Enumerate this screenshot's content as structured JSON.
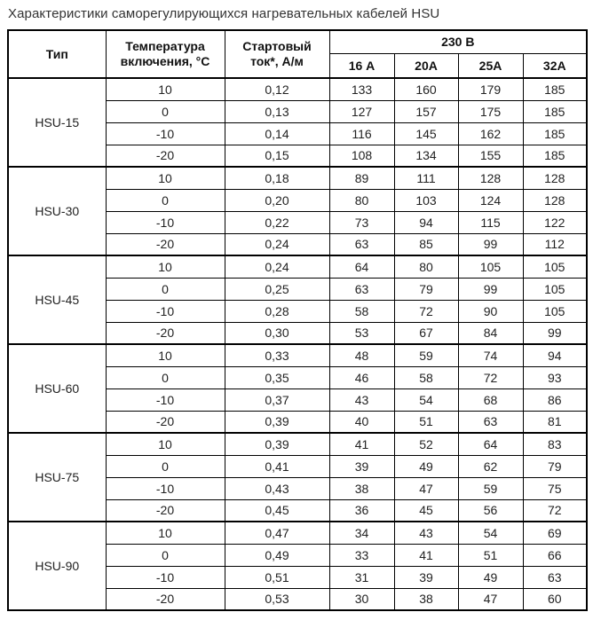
{
  "page": {
    "title": "Характеристики саморегулирующихся нагревательных кабелей HSU"
  },
  "colors": {
    "background": "#ffffff",
    "border": "#000000",
    "title_text": "#333333",
    "cell_text": "#222222"
  },
  "table": {
    "headers": {
      "type": "Тип",
      "temperature": "Температура\nвключения, °С",
      "start_current": "Стартовый\nток*, А/м",
      "voltage_group": "230 В",
      "current_columns": [
        "16 А",
        "20А",
        "25А",
        "32А"
      ]
    },
    "groups": [
      {
        "type": "HSU-15",
        "rows": [
          {
            "temperature": "10",
            "start_current": "0,12",
            "values": [
              "133",
              "160",
              "179",
              "185"
            ]
          },
          {
            "temperature": "0",
            "start_current": "0,13",
            "values": [
              "127",
              "157",
              "175",
              "185"
            ]
          },
          {
            "temperature": "-10",
            "start_current": "0,14",
            "values": [
              "116",
              "145",
              "162",
              "185"
            ]
          },
          {
            "temperature": "-20",
            "start_current": "0,15",
            "values": [
              "108",
              "134",
              "155",
              "185"
            ]
          }
        ]
      },
      {
        "type": "HSU-30",
        "rows": [
          {
            "temperature": "10",
            "start_current": "0,18",
            "values": [
              "89",
              "111",
              "128",
              "128"
            ]
          },
          {
            "temperature": "0",
            "start_current": "0,20",
            "values": [
              "80",
              "103",
              "124",
              "128"
            ]
          },
          {
            "temperature": "-10",
            "start_current": "0,22",
            "values": [
              "73",
              "94",
              "115",
              "122"
            ]
          },
          {
            "temperature": "-20",
            "start_current": "0,24",
            "values": [
              "63",
              "85",
              "99",
              "112"
            ]
          }
        ]
      },
      {
        "type": "HSU-45",
        "rows": [
          {
            "temperature": "10",
            "start_current": "0,24",
            "values": [
              "64",
              "80",
              "105",
              "105"
            ]
          },
          {
            "temperature": "0",
            "start_current": "0,25",
            "values": [
              "63",
              "79",
              "99",
              "105"
            ]
          },
          {
            "temperature": "-10",
            "start_current": "0,28",
            "values": [
              "58",
              "72",
              "90",
              "105"
            ]
          },
          {
            "temperature": "-20",
            "start_current": "0,30",
            "values": [
              "53",
              "67",
              "84",
              "99"
            ]
          }
        ]
      },
      {
        "type": "HSU-60",
        "rows": [
          {
            "temperature": "10",
            "start_current": "0,33",
            "values": [
              "48",
              "59",
              "74",
              "94"
            ]
          },
          {
            "temperature": "0",
            "start_current": "0,35",
            "values": [
              "46",
              "58",
              "72",
              "93"
            ]
          },
          {
            "temperature": "-10",
            "start_current": "0,37",
            "values": [
              "43",
              "54",
              "68",
              "86"
            ]
          },
          {
            "temperature": "-20",
            "start_current": "0,39",
            "values": [
              "40",
              "51",
              "63",
              "81"
            ]
          }
        ]
      },
      {
        "type": "HSU-75",
        "rows": [
          {
            "temperature": "10",
            "start_current": "0,39",
            "values": [
              "41",
              "52",
              "64",
              "83"
            ]
          },
          {
            "temperature": "0",
            "start_current": "0,41",
            "values": [
              "39",
              "49",
              "62",
              "79"
            ]
          },
          {
            "temperature": "-10",
            "start_current": "0,43",
            "values": [
              "38",
              "47",
              "59",
              "75"
            ]
          },
          {
            "temperature": "-20",
            "start_current": "0,45",
            "values": [
              "36",
              "45",
              "56",
              "72"
            ]
          }
        ]
      },
      {
        "type": "HSU-90",
        "rows": [
          {
            "temperature": "10",
            "start_current": "0,47",
            "values": [
              "34",
              "43",
              "54",
              "69"
            ]
          },
          {
            "temperature": "0",
            "start_current": "0,49",
            "values": [
              "33",
              "41",
              "51",
              "66"
            ]
          },
          {
            "temperature": "-10",
            "start_current": "0,51",
            "values": [
              "31",
              "39",
              "49",
              "63"
            ]
          },
          {
            "temperature": "-20",
            "start_current": "0,53",
            "values": [
              "30",
              "38",
              "47",
              "60"
            ]
          }
        ]
      }
    ]
  }
}
